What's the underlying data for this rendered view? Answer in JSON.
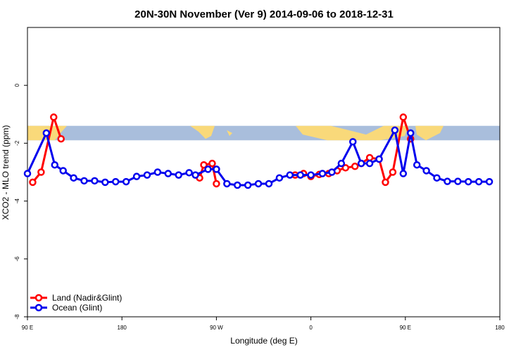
{
  "chart_data": {
    "type": "line",
    "title": "20N-30N November (Ver 9)   2014-09-06 to 2018-12-31",
    "xlabel": "Longitude (deg E)",
    "ylabel": "XCO2 - MLO trend (ppm)",
    "xlim": [
      90,
      540
    ],
    "ylim": [
      -8,
      2
    ],
    "x_ticks": [
      {
        "value": 90,
        "label": "90 E"
      },
      {
        "value": 180,
        "label": "180"
      },
      {
        "value": 270,
        "label": "90 W"
      },
      {
        "value": 360,
        "label": "0"
      },
      {
        "value": 450,
        "label": "90 E"
      },
      {
        "value": 540,
        "label": "180"
      }
    ],
    "y_ticks": [
      {
        "value": 0,
        "label": "0"
      },
      {
        "value": -2,
        "label": "-2"
      },
      {
        "value": -4,
        "label": "-4"
      },
      {
        "value": -6,
        "label": "-6"
      },
      {
        "value": -8,
        "label": "-8"
      }
    ],
    "background_band": {
      "y_range": [
        -1.9,
        -1.4
      ],
      "ocean_color": "#a9bedc",
      "land_color": "#f9d97a"
    },
    "legend_position": "bottom-left",
    "grid": false,
    "series": [
      {
        "name": "Land (Nadir&Glint)",
        "color": "#ff0000",
        "segments": [
          [
            [
              95,
              -3.35
            ],
            [
              103,
              -3.0
            ],
            [
              115,
              -1.1
            ],
            [
              122,
              -1.85
            ]
          ],
          [
            [
              254,
              -3.2
            ],
            [
              258,
              -2.75
            ],
            [
              266,
              -2.7
            ],
            [
              270,
              -3.4
            ]
          ],
          [
            [
              345,
              -3.1
            ],
            [
              353,
              -3.05
            ],
            [
              360,
              -3.15
            ],
            [
              368,
              -3.08
            ],
            [
              377,
              -3.05
            ],
            [
              385,
              -2.95
            ],
            [
              393,
              -2.85
            ],
            [
              402,
              -2.8
            ],
            [
              408,
              -2.7
            ],
            [
              416,
              -2.5
            ],
            [
              425,
              -2.55
            ],
            [
              431,
              -3.35
            ],
            [
              438,
              -3.0
            ],
            [
              448,
              -1.1
            ],
            [
              455,
              -1.85
            ]
          ]
        ]
      },
      {
        "name": "Ocean (Glint)",
        "color": "#0000ee",
        "segments": [
          [
            [
              90,
              -3.05
            ],
            [
              108,
              -1.65
            ],
            [
              116,
              -2.75
            ],
            [
              124,
              -2.95
            ],
            [
              134,
              -3.2
            ],
            [
              144,
              -3.3
            ],
            [
              154,
              -3.3
            ],
            [
              164,
              -3.35
            ],
            [
              174,
              -3.33
            ],
            [
              184,
              -3.33
            ],
            [
              194,
              -3.15
            ],
            [
              204,
              -3.1
            ],
            [
              214,
              -3.0
            ],
            [
              224,
              -3.05
            ],
            [
              234,
              -3.1
            ],
            [
              244,
              -3.02
            ],
            [
              250,
              -3.1
            ],
            [
              262,
              -2.9
            ],
            [
              270,
              -2.9
            ],
            [
              280,
              -3.4
            ],
            [
              290,
              -3.45
            ],
            [
              300,
              -3.45
            ],
            [
              310,
              -3.4
            ],
            [
              320,
              -3.4
            ],
            [
              330,
              -3.2
            ],
            [
              340,
              -3.1
            ],
            [
              350,
              -3.1
            ],
            [
              360,
              -3.1
            ],
            [
              371,
              -3.05
            ],
            [
              380,
              -3.0
            ],
            [
              389,
              -2.7
            ],
            [
              400,
              -1.95
            ],
            [
              408,
              -2.7
            ],
            [
              416,
              -2.7
            ],
            [
              425,
              -2.55
            ],
            [
              440,
              -1.55
            ],
            [
              448,
              -3.05
            ],
            [
              455,
              -1.65
            ],
            [
              461,
              -2.75
            ],
            [
              470,
              -2.95
            ],
            [
              480,
              -3.2
            ],
            [
              490,
              -3.32
            ],
            [
              500,
              -3.32
            ],
            [
              510,
              -3.33
            ],
            [
              520,
              -3.33
            ],
            [
              530,
              -3.33
            ]
          ]
        ]
      }
    ]
  }
}
